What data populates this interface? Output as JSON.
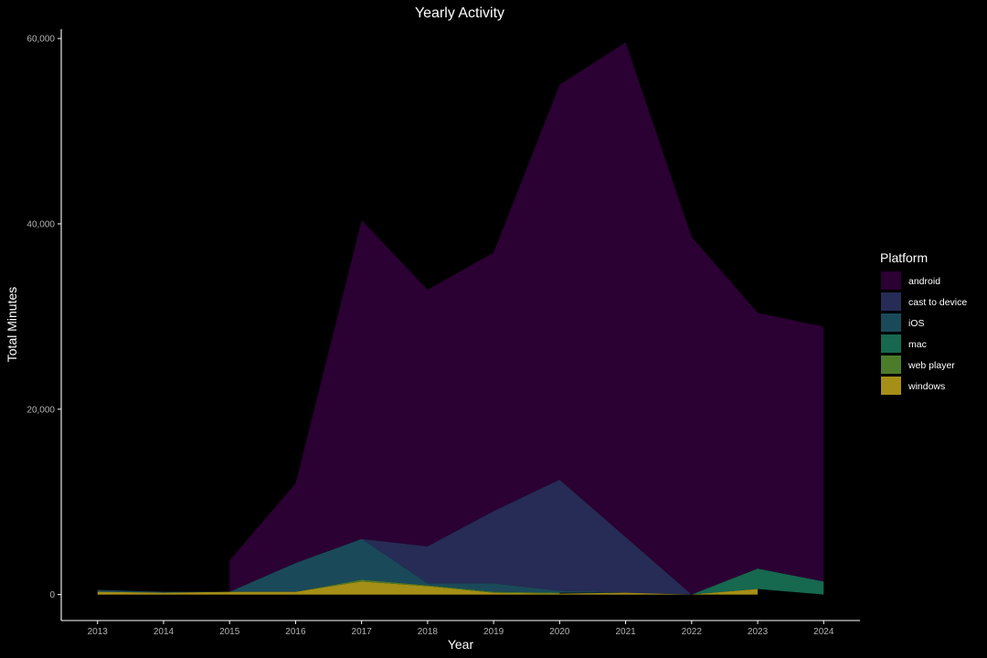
{
  "chart_data": {
    "type": "area",
    "title": "Yearly Activity",
    "xlabel": "Year",
    "ylabel": "Total Minutes",
    "x": [
      2013,
      2014,
      2015,
      2016,
      2017,
      2018,
      2019,
      2020,
      2021,
      2022,
      2023,
      2024
    ],
    "x_tick_labels": [
      "2013",
      "2014",
      "2015",
      "2016",
      "2017",
      "2018",
      "2019",
      "2020",
      "2021",
      "2022",
      "2023",
      "2024"
    ],
    "y_ticks": [
      0,
      20000,
      40000,
      60000
    ],
    "y_tick_labels": [
      "0",
      "20,000",
      "40,000",
      "60,000"
    ],
    "ylim": [
      -2800,
      61000
    ],
    "xlim": [
      2012.45,
      2024.55
    ],
    "stacked": true,
    "grid": false,
    "legend_position": "right",
    "legend_title": "Platform",
    "series": [
      {
        "name": "android",
        "color": "#2b0033",
        "values": [
          null,
          null,
          3400,
          8600,
          34400,
          27700,
          27900,
          42600,
          53400,
          38600,
          27600,
          27500
        ]
      },
      {
        "name": "cast to device",
        "color": "#262c55",
        "values": [
          null,
          null,
          0,
          0,
          0,
          4000,
          7800,
          12000,
          6000,
          0,
          0,
          0
        ]
      },
      {
        "name": "iOS",
        "color": "#1a4a5a",
        "values": [
          200,
          100,
          0,
          3100,
          4400,
          200,
          900,
          200,
          0,
          0,
          0,
          0
        ]
      },
      {
        "name": "mac",
        "color": "#16684f",
        "values": [
          0,
          0,
          0,
          0,
          0,
          0,
          0,
          0,
          0,
          0,
          2200,
          1400
        ]
      },
      {
        "name": "web player",
        "color": "#4c7b2a",
        "values": [
          0,
          0,
          0,
          0,
          200,
          100,
          100,
          100,
          null,
          null,
          null,
          null
        ]
      },
      {
        "name": "windows",
        "color": "#a58f16",
        "values": [
          300,
          200,
          300,
          300,
          1400,
          900,
          200,
          100,
          200,
          0,
          600,
          null
        ]
      }
    ]
  }
}
